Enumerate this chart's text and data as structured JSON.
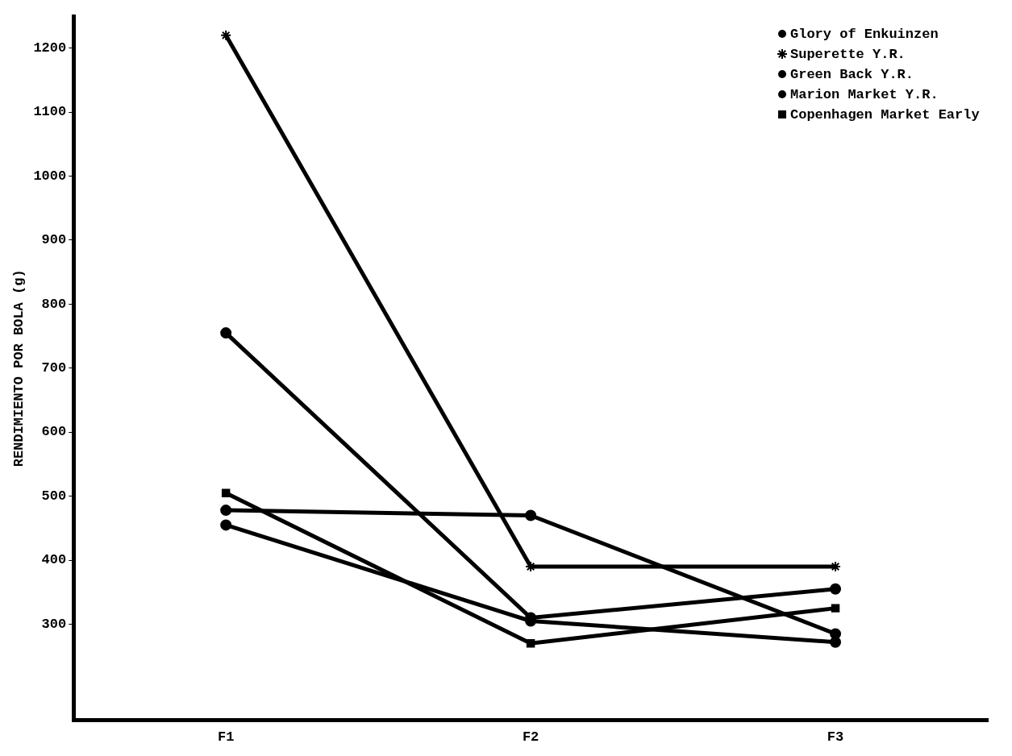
{
  "chart_data": {
    "type": "line",
    "ylabel": "RENDIMIENTO POR BOLA (g)",
    "categories": [
      "F1",
      "F2",
      "F3"
    ],
    "series": [
      {
        "name": "Glory of Enkuinzen",
        "color": "#000000",
        "marker": "circle",
        "values": [
          478,
          470,
          285
        ]
      },
      {
        "name": "Superette Y.R.",
        "color": "#000000",
        "marker": "cross",
        "values": [
          1220,
          390,
          390
        ]
      },
      {
        "name": "Green Back Y.R.",
        "color": "#000000",
        "marker": "circle",
        "values": [
          755,
          310,
          355
        ]
      },
      {
        "name": "Marion Market Y.R.",
        "color": "#000000",
        "marker": "circle",
        "values": [
          455,
          305,
          272
        ]
      },
      {
        "name": "Copenhagen Market Early",
        "color": "#000000",
        "marker": "square",
        "values": [
          505,
          270,
          325
        ]
      }
    ],
    "ylim": [
      150,
      1250
    ],
    "yticks": [
      300,
      400,
      500,
      600,
      700,
      800,
      900,
      1000,
      1100,
      1200
    ],
    "grid": false,
    "legend": "top right",
    "line_style": "solid"
  }
}
